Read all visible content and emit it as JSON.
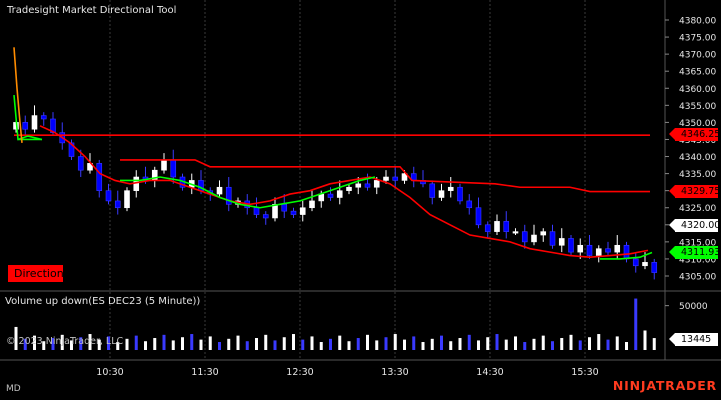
{
  "window": {
    "indicator_title": "Tradesight Market Directional Tool",
    "volume_title": "Volume up down(ES DEC23 (5 Minute))",
    "copyright": "© 2023 NinjaTrader, LLC",
    "status_left": "MD",
    "brand": "NINJATRADER",
    "direction_button": "Direction"
  },
  "price_axis": {
    "ticks": [
      "4380.00",
      "4375.00",
      "4370.00",
      "4365.00",
      "4360.00",
      "4355.00",
      "4350.00",
      "4345.00",
      "4340.00",
      "4335.00",
      "4330.00",
      "4325.00",
      "4320.00",
      "4315.00",
      "4310.00",
      "4305.00"
    ]
  },
  "volume_axis": {
    "ticks": [
      "50000"
    ]
  },
  "time_axis": {
    "ticks": [
      "10:30",
      "11:30",
      "12:30",
      "13:30",
      "14:30",
      "15:30"
    ]
  },
  "markers": {
    "upper_red": "4346.25",
    "lower_red": "4329.75",
    "last_price": "4320.00",
    "green_line": "4311.93",
    "last_volume": "13445"
  },
  "colors": {
    "background": "#000000",
    "red_line": "#ff0000",
    "green_line": "#00ff00",
    "orange_line": "#ff8c00",
    "up_candle": "#ffffff",
    "down_candle": "#0000ff",
    "grid": "#3a3a3a"
  },
  "chart_data": {
    "type": "candlestick",
    "instrument": "ES DEC23 (5 Minute)",
    "ylim": [
      4303,
      4382
    ],
    "grid": true
  }
}
